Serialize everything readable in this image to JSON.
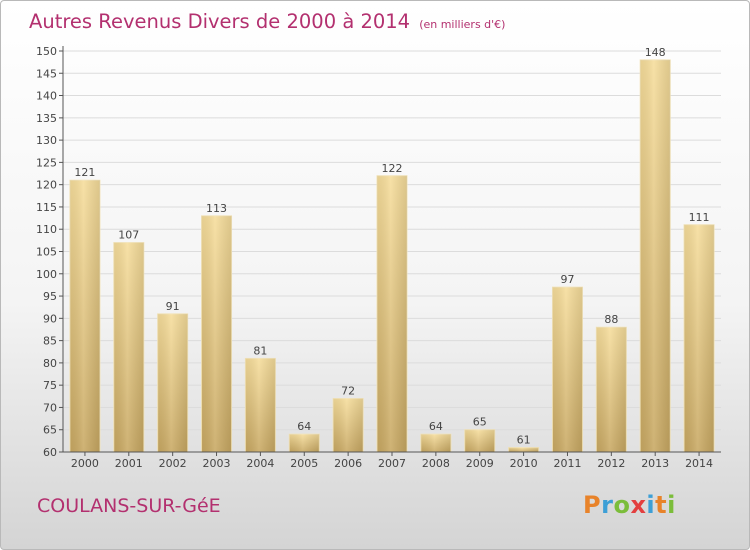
{
  "chart_data": {
    "type": "bar",
    "title": "Autres Revenus Divers de 2000 à 2014",
    "subtitle": "(en milliers d'€)",
    "categories": [
      "2000",
      "2001",
      "2002",
      "2003",
      "2004",
      "2005",
      "2006",
      "2007",
      "2008",
      "2009",
      "2010",
      "2011",
      "2012",
      "2013",
      "2014"
    ],
    "values": [
      121,
      107,
      91,
      113,
      81,
      64,
      72,
      122,
      64,
      65,
      61,
      97,
      88,
      148,
      111
    ],
    "ylim": [
      60,
      150
    ],
    "yticks": [
      60,
      65,
      70,
      75,
      80,
      85,
      90,
      95,
      100,
      105,
      110,
      115,
      120,
      125,
      130,
      135,
      140,
      145,
      150
    ],
    "grid": true,
    "bar_color": "#e2c57c"
  },
  "footer": {
    "city": "COULANS-SUR-GéE",
    "logo_text": "Proxiti",
    "logo_colors": [
      "#e8832a",
      "#3d9fd6",
      "#7bbd3a",
      "#e33f3f",
      "#3d9fd6",
      "#e8832a",
      "#7bbd3a"
    ]
  }
}
